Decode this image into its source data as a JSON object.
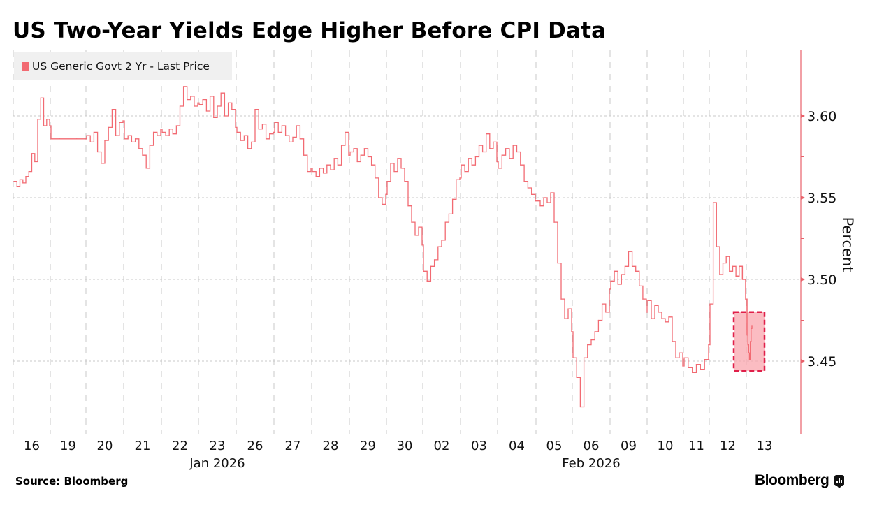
{
  "title": "US Two-Year Yields Edge Higher Before CPI Data",
  "source": "Source: Bloomberg",
  "brand": "Bloomberg",
  "colors": {
    "series": "#f26a72",
    "highlight_border": "#e0204a",
    "highlight_fill": "#f9a5ad",
    "axis": "#e8626b",
    "grid": "#c8c8c8",
    "legend_bg": "#f0f0f0"
  },
  "chart_data": {
    "type": "line",
    "title": "US Two-Year Yields Edge Higher Before CPI Data",
    "ylabel": "Percent",
    "ylim": [
      3.405,
      3.64
    ],
    "yticks": [
      3.45,
      3.5,
      3.55,
      3.6
    ],
    "ytick_labels": [
      "3.45",
      "3.50",
      "3.55",
      "3.60"
    ],
    "grid": true,
    "legend": {
      "position": "top-left",
      "entries": [
        "US Generic Govt 2 Yr - Last Price"
      ]
    },
    "x_categories": [
      "16",
      "19",
      "20",
      "21",
      "22",
      "23",
      "26",
      "27",
      "28",
      "29",
      "30",
      "02",
      "03",
      "04",
      "05",
      "06",
      "09",
      "10",
      "11",
      "12",
      "13"
    ],
    "x_group_labels": [
      {
        "label": "Jan 2026",
        "center_category": "23"
      },
      {
        "label": "Feb 2026",
        "center_category": "06"
      }
    ],
    "series": [
      {
        "name": "US Generic Govt 2 Yr - Last Price",
        "sessions": [
          [
            3.56,
            3.557,
            3.561,
            3.559,
            3.563,
            3.566,
            3.577,
            3.572,
            3.598,
            3.611,
            3.594,
            3.598,
            3.594
          ],
          [
            3.586,
            3.586,
            3.586,
            3.586,
            3.586
          ],
          [
            3.588,
            3.584,
            3.59,
            3.578,
            3.571,
            3.585,
            3.593,
            3.604,
            3.588,
            3.596,
            3.597
          ],
          [
            3.586,
            3.588,
            3.584,
            3.586,
            3.58,
            3.576,
            3.568,
            3.582,
            3.59,
            3.588,
            3.592
          ],
          [
            3.59,
            3.588,
            3.592,
            3.589,
            3.594,
            3.606,
            3.618,
            3.61,
            3.612,
            3.606,
            3.608
          ],
          [
            3.607,
            3.61,
            3.603,
            3.612,
            3.599,
            3.606,
            3.614,
            3.6,
            3.608,
            3.604,
            3.593
          ],
          [
            3.59,
            3.585,
            3.588,
            3.58,
            3.584,
            3.604,
            3.592,
            3.595,
            3.586,
            3.589,
            3.59
          ],
          [
            3.596,
            3.59,
            3.594,
            3.588,
            3.584,
            3.587,
            3.594,
            3.586,
            3.576,
            3.566,
            3.568
          ],
          [
            3.566,
            3.563,
            3.568,
            3.565,
            3.57,
            3.567,
            3.574,
            3.57,
            3.582,
            3.59,
            3.576
          ],
          [
            3.578,
            3.58,
            3.572,
            3.576,
            3.58,
            3.575,
            3.57,
            3.562,
            3.55,
            3.546,
            3.552
          ],
          [
            3.56,
            3.571,
            3.566,
            3.574,
            3.568,
            3.56,
            3.545,
            3.535,
            3.527,
            3.532,
            3.521
          ],
          [
            3.505,
            3.499,
            3.508,
            3.512,
            3.52,
            3.524,
            3.535,
            3.54,
            3.549,
            3.561,
            3.562
          ],
          [
            3.57,
            3.566,
            3.574,
            3.57,
            3.575,
            3.582,
            3.578,
            3.589,
            3.58,
            3.584,
            3.572
          ],
          [
            3.568,
            3.576,
            3.58,
            3.574,
            3.582,
            3.578,
            3.57,
            3.56,
            3.556,
            3.552,
            3.548
          ],
          [
            3.548,
            3.545,
            3.55,
            3.547,
            3.553,
            3.535,
            3.51,
            3.488,
            3.476,
            3.482,
            3.468
          ],
          [
            3.452,
            3.44,
            3.422,
            3.452,
            3.46,
            3.463,
            3.468,
            3.475,
            3.485,
            3.48,
            3.494
          ],
          [
            3.499,
            3.505,
            3.497,
            3.503,
            3.508,
            3.517,
            3.508,
            3.505,
            3.496,
            3.488,
            3.48
          ],
          [
            3.487,
            3.476,
            3.484,
            3.48,
            3.476,
            3.474,
            3.477,
            3.462,
            3.452,
            3.455,
            3.447
          ],
          [
            3.452,
            3.446,
            3.443,
            3.448,
            3.445,
            3.451,
            3.46
          ],
          [
            3.485,
            3.547,
            3.52,
            3.503,
            3.51,
            3.514,
            3.505,
            3.508,
            3.502,
            3.508,
            3.5,
            3.488
          ],
          [
            3.466,
            3.46,
            3.455,
            3.451,
            3.462,
            3.47,
            3.472
          ]
        ]
      }
    ],
    "annotations": [
      {
        "type": "highlight-box",
        "x_category": "13",
        "y_range": [
          3.444,
          3.48
        ]
      }
    ]
  }
}
